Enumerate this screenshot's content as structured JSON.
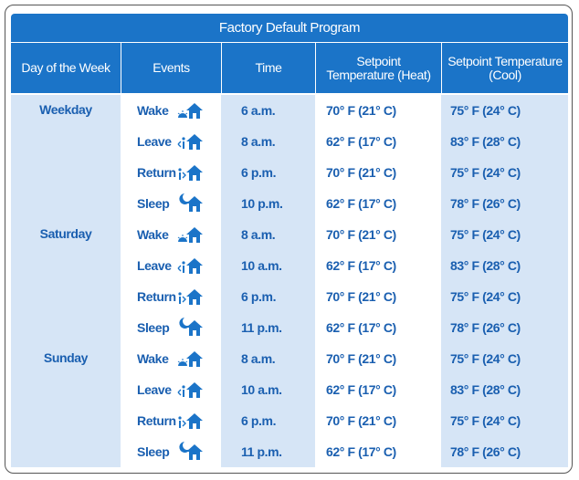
{
  "title": "Factory Default Program",
  "headers": [
    "Day of the Week",
    "Events",
    "Time",
    "Setpoint Temperature (Heat)",
    "Setpoint Temperature (Cool)"
  ],
  "groups": [
    {
      "day": "Weekday",
      "rows": [
        [
          "Wake",
          "6 a.m.",
          "70° F (21° C)",
          "75° F (24° C)"
        ],
        [
          "Leave",
          "8 a.m.",
          "62° F (17° C)",
          "83° F (28° C)"
        ],
        [
          "Return",
          "6 p.m.",
          "70° F (21° C)",
          "75° F (24° C)"
        ],
        [
          "Sleep",
          "10 p.m.",
          "62° F (17° C)",
          "78° F (26° C)"
        ]
      ]
    },
    {
      "day": "Saturday",
      "rows": [
        [
          "Wake",
          "8 a.m.",
          "70° F (21° C)",
          "75° F (24° C)"
        ],
        [
          "Leave",
          "10 a.m.",
          "62° F (17° C)",
          "83° F (28° C)"
        ],
        [
          "Return",
          "6 p.m.",
          "70° F (21° C)",
          "75° F (24° C)"
        ],
        [
          "Sleep",
          "11 p.m.",
          "62° F (17° C)",
          "78° F (26° C)"
        ]
      ]
    },
    {
      "day": "Sunday",
      "rows": [
        [
          "Wake",
          "8 a.m.",
          "70° F (21° C)",
          "75° F (24° C)"
        ],
        [
          "Leave",
          "10 a.m.",
          "62° F (17° C)",
          "83° F (28° C)"
        ],
        [
          "Return",
          "6 p.m.",
          "70° F (21° C)",
          "75° F (24° C)"
        ],
        [
          "Sleep",
          "11 p.m.",
          "62° F (17° C)",
          "78° F (26° C)"
        ]
      ]
    }
  ]
}
